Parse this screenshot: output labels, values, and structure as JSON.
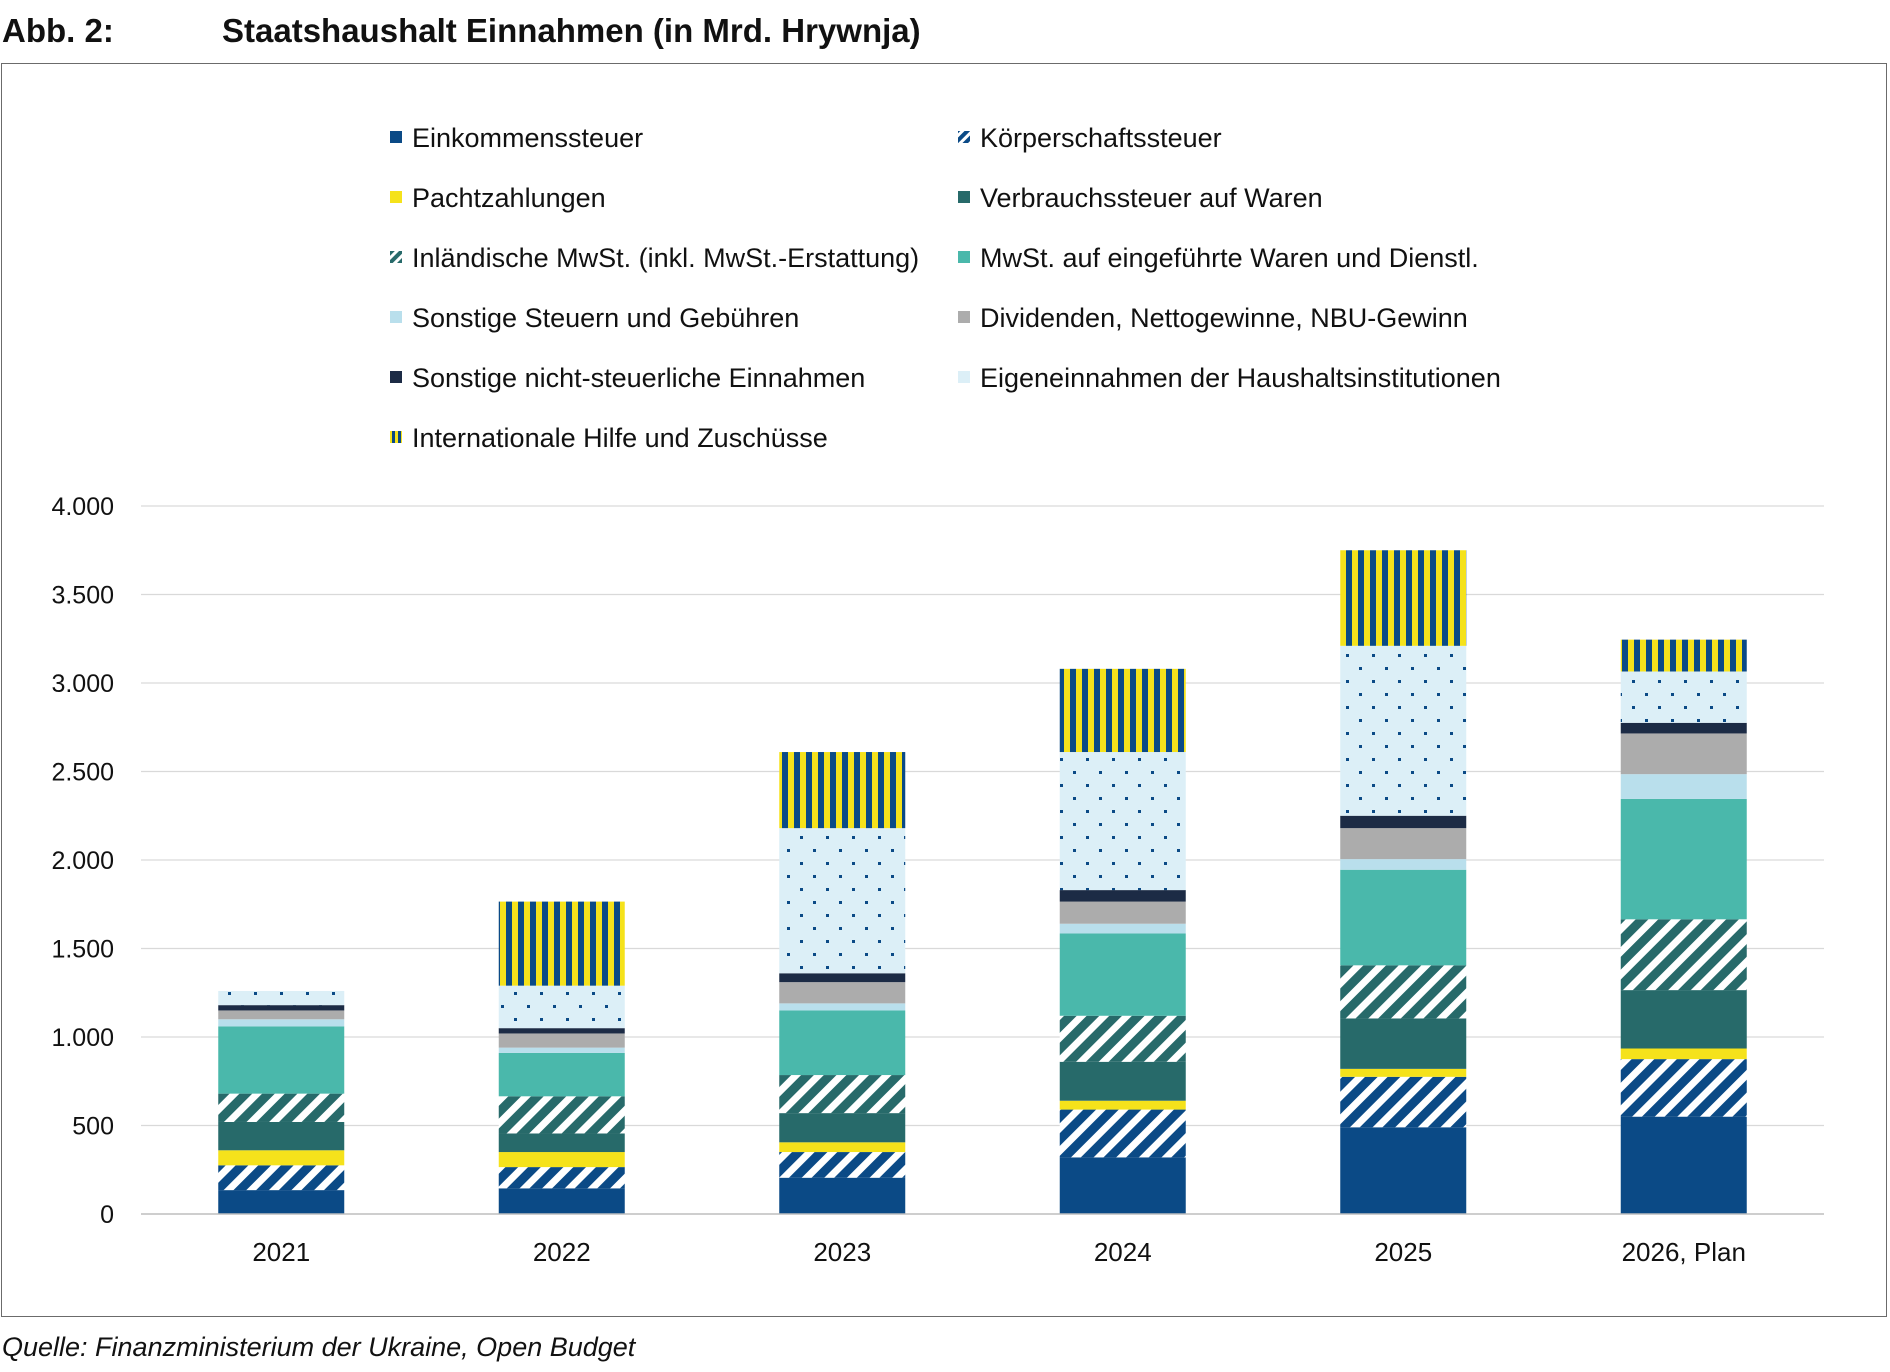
{
  "header": {
    "figure_number": "Abb. 2:",
    "title": "Staatshaushalt Einnahmen (in Mrd. Hrywnja)"
  },
  "source": "Quelle: Finanzministerium der Ukraine, Open Budget",
  "colors": {
    "dark_blue": "#0b4a86",
    "yellow": "#f5e21b",
    "dark_teal": "#276a6a",
    "teal": "#4ab8ab",
    "light_blue": "#b9dfec",
    "grey": "#acacac",
    "navy": "#1c2b45",
    "pale_blue": "#dceff7",
    "white": "#ffffff"
  },
  "chart_data": {
    "type": "bar",
    "stacked": true,
    "categories": [
      "2021",
      "2022",
      "2023",
      "2024",
      "2025",
      "2026, Plan"
    ],
    "ylim": [
      0,
      4000
    ],
    "yticks": [
      0,
      500,
      1000,
      1500,
      2000,
      2500,
      3000,
      3500,
      4000
    ],
    "ytick_labels": [
      "0",
      "500",
      "1.000",
      "1.500",
      "2.000",
      "2.500",
      "3.000",
      "3.500",
      "4.000"
    ],
    "grid": "horizontal",
    "legend_position": "top",
    "series": [
      {
        "name": "Einkommenssteuer",
        "fill": "solid-dark-blue",
        "values": [
          135,
          145,
          205,
          320,
          490,
          550
        ]
      },
      {
        "name": "Körperschaftssteuer",
        "fill": "diagonal-dark-blue",
        "values": [
          140,
          120,
          145,
          270,
          285,
          325
        ]
      },
      {
        "name": "Pachtzahlungen",
        "fill": "solid-yellow",
        "values": [
          85,
          85,
          55,
          50,
          45,
          60
        ]
      },
      {
        "name": "Verbrauchssteuer auf Waren",
        "fill": "solid-dark-teal",
        "values": [
          160,
          105,
          165,
          220,
          285,
          330
        ]
      },
      {
        "name": "Inländische MwSt. (inkl. MwSt.-Erstattung)",
        "fill": "diagonal-dark-teal",
        "values": [
          160,
          210,
          215,
          260,
          300,
          400
        ]
      },
      {
        "name": "MwSt. auf eingeführte Waren und Dienstl.",
        "fill": "solid-teal",
        "values": [
          380,
          245,
          365,
          465,
          540,
          680
        ]
      },
      {
        "name": "Sonstige Steuern und Gebühren",
        "fill": "solid-light-blue",
        "values": [
          40,
          30,
          40,
          55,
          60,
          140
        ]
      },
      {
        "name": "Dividenden, Nettogewinne, NBU-Gewinn",
        "fill": "solid-grey",
        "values": [
          50,
          80,
          120,
          125,
          175,
          230
        ]
      },
      {
        "name": "Sonstige nicht-steuerliche Einnahmen",
        "fill": "solid-navy",
        "values": [
          30,
          30,
          50,
          65,
          70,
          60
        ]
      },
      {
        "name": "Eigeneinnahmen der Haushaltsinstitutionen",
        "fill": "dotted-pale-blue",
        "values": [
          80,
          240,
          820,
          780,
          960,
          290
        ]
      },
      {
        "name": "Internationale Hilfe und Zuschüsse",
        "fill": "striped-blue-yellow",
        "values": [
          0,
          475,
          430,
          470,
          540,
          180
        ]
      }
    ]
  }
}
